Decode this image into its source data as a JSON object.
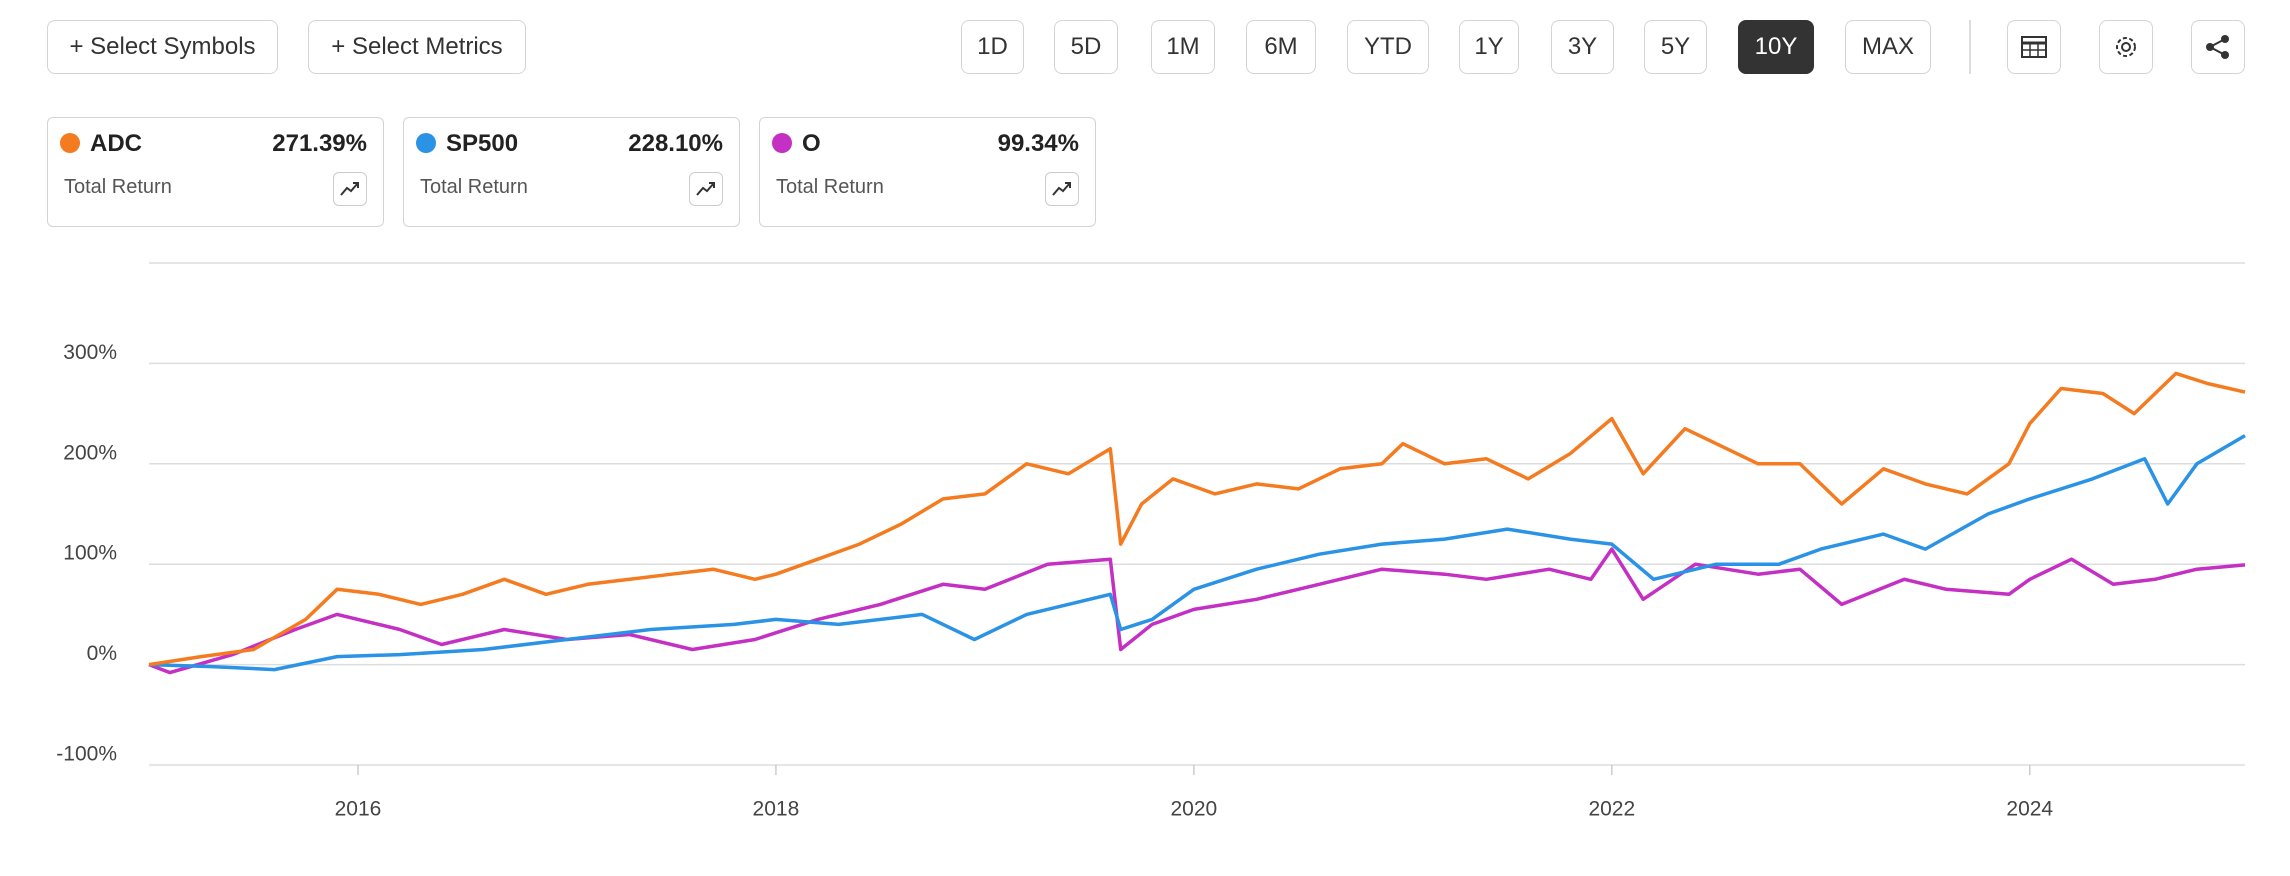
{
  "toolbar": {
    "buttons": [
      "+ Select Symbols",
      "+ Select Metrics"
    ],
    "periods": [
      "1D",
      "5D",
      "1M",
      "6M",
      "YTD",
      "1Y",
      "3Y",
      "5Y",
      "10Y",
      "MAX"
    ],
    "active_period": 8
  },
  "cards": [
    {
      "symbol": "ADC",
      "value": "271.39%",
      "metric": "Total Return",
      "color": "#f47b20"
    },
    {
      "symbol": "SP500",
      "value": "228.10%",
      "metric": "Total Return",
      "color": "#2b93e6"
    },
    {
      "symbol": "O",
      "value": "99.34%",
      "metric": "Total Return",
      "color": "#c42fc4"
    }
  ],
  "chart_data": {
    "type": "line",
    "xlim": [
      2015.0,
      2025.03
    ],
    "xticks": [
      2016,
      2018,
      2020,
      2022,
      2024
    ],
    "ylim": [
      -100,
      400
    ],
    "yticks": [
      {
        "value": -100,
        "label": "-100%"
      },
      {
        "value": 0,
        "label": "0%"
      },
      {
        "value": 100,
        "label": "100%"
      },
      {
        "value": 200,
        "label": "200%"
      },
      {
        "value": 300,
        "label": "300%"
      }
    ],
    "grid": true,
    "series": [
      {
        "name": "ADC",
        "color": "#f47b20",
        "x": [
          2015.0,
          2015.25,
          2015.5,
          2015.75,
          2015.9,
          2016.1,
          2016.3,
          2016.5,
          2016.7,
          2016.9,
          2017.1,
          2017.3,
          2017.5,
          2017.7,
          2017.9,
          2018.0,
          2018.2,
          2018.4,
          2018.6,
          2018.8,
          2019.0,
          2019.2,
          2019.4,
          2019.6,
          2019.65,
          2019.75,
          2019.9,
          2020.1,
          2020.3,
          2020.5,
          2020.7,
          2020.9,
          2021.0,
          2021.2,
          2021.4,
          2021.6,
          2021.8,
          2022.0,
          2022.15,
          2022.35,
          2022.5,
          2022.7,
          2022.9,
          2023.1,
          2023.3,
          2023.5,
          2023.7,
          2023.9,
          2024.0,
          2024.15,
          2024.35,
          2024.5,
          2024.7,
          2024.85,
          2025.03
        ],
        "values": [
          0,
          8,
          15,
          45,
          75,
          70,
          60,
          70,
          85,
          70,
          80,
          85,
          90,
          95,
          85,
          90,
          105,
          120,
          140,
          165,
          170,
          200,
          190,
          215,
          120,
          160,
          185,
          170,
          180,
          175,
          195,
          200,
          220,
          200,
          205,
          185,
          210,
          245,
          190,
          235,
          220,
          200,
          200,
          160,
          195,
          180,
          170,
          200,
          240,
          275,
          270,
          250,
          290,
          280,
          271.39
        ]
      },
      {
        "name": "SP500",
        "color": "#2b93e6",
        "x": [
          2015.0,
          2015.3,
          2015.6,
          2015.9,
          2016.2,
          2016.6,
          2017.0,
          2017.4,
          2017.8,
          2018.0,
          2018.3,
          2018.7,
          2018.95,
          2019.2,
          2019.6,
          2019.65,
          2019.8,
          2020.0,
          2020.3,
          2020.6,
          2020.9,
          2021.2,
          2021.5,
          2021.8,
          2022.0,
          2022.2,
          2022.5,
          2022.8,
          2023.0,
          2023.3,
          2023.5,
          2023.8,
          2024.0,
          2024.3,
          2024.55,
          2024.66,
          2024.8,
          2025.03
        ],
        "values": [
          0,
          -2,
          -5,
          8,
          10,
          15,
          25,
          35,
          40,
          45,
          40,
          50,
          25,
          50,
          70,
          35,
          45,
          75,
          95,
          110,
          120,
          125,
          135,
          125,
          120,
          85,
          100,
          100,
          115,
          130,
          115,
          150,
          165,
          185,
          205,
          160,
          200,
          228.1
        ]
      },
      {
        "name": "O",
        "color": "#c42fc4",
        "x": [
          2015.0,
          2015.1,
          2015.4,
          2015.7,
          2015.9,
          2016.2,
          2016.4,
          2016.7,
          2017.0,
          2017.3,
          2017.6,
          2017.9,
          2018.2,
          2018.5,
          2018.8,
          2019.0,
          2019.3,
          2019.6,
          2019.65,
          2019.8,
          2020.0,
          2020.3,
          2020.6,
          2020.9,
          2021.2,
          2021.4,
          2021.7,
          2021.9,
          2022.0,
          2022.15,
          2022.4,
          2022.7,
          2022.9,
          2023.1,
          2023.4,
          2023.6,
          2023.9,
          2024.0,
          2024.2,
          2024.4,
          2024.6,
          2024.8,
          2025.03
        ],
        "values": [
          0,
          -8,
          10,
          35,
          50,
          35,
          20,
          35,
          25,
          30,
          15,
          25,
          45,
          60,
          80,
          75,
          100,
          105,
          15,
          40,
          55,
          65,
          80,
          95,
          90,
          85,
          95,
          85,
          115,
          65,
          100,
          90,
          95,
          60,
          85,
          75,
          70,
          85,
          105,
          80,
          85,
          95,
          99.34
        ]
      }
    ]
  }
}
